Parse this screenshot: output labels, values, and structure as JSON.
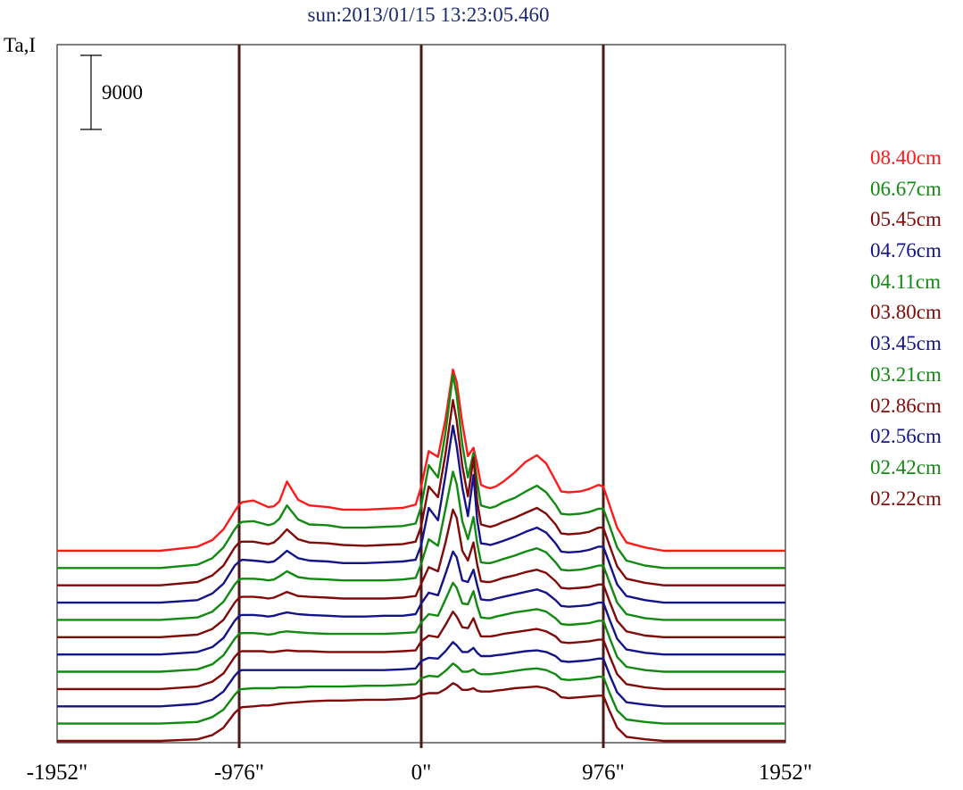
{
  "chart_data": {
    "type": "line",
    "title": "sun:2013/01/15 13:23:05.460",
    "ylabel": "Ta,I",
    "scale_bar_label": "9000",
    "x_ticks": [
      "-1952\"",
      "-976\"",
      "0\"",
      "976\"",
      "1952\""
    ],
    "x_tick_values": [
      -1952,
      -976,
      0,
      976,
      1952
    ],
    "xlim": [
      -1952,
      1952
    ],
    "vertical_lines": [
      -976,
      0,
      976
    ],
    "vertical_line_color": "#4a1a1a",
    "grid": false,
    "legend_position": "right",
    "stack_spacing": 2100,
    "x": [
      -1952,
      -1400,
      -1200,
      -1120,
      -1060,
      -1000,
      -976,
      -960,
      -900,
      -850,
      -820,
      -790,
      -760,
      -720,
      -660,
      -600,
      -500,
      -420,
      -300,
      -200,
      -100,
      -30,
      0,
      40,
      90,
      130,
      170,
      190,
      220,
      250,
      280,
      300,
      320,
      350,
      370,
      400,
      440,
      500,
      560,
      620,
      670,
      720,
      750,
      790,
      850,
      900,
      950,
      976,
      1010,
      1050,
      1100,
      1200,
      1300,
      1500,
      1952
    ],
    "series": [
      {
        "name": "08.40cm",
        "color": "#ff1a1a",
        "values": [
          0,
          0,
          500,
          1300,
          2600,
          4800,
          5600,
          5900,
          6100,
          5600,
          5300,
          5400,
          6000,
          8400,
          6200,
          5500,
          5300,
          5000,
          5000,
          5100,
          5200,
          5600,
          7800,
          12100,
          11400,
          16000,
          22000,
          20500,
          15500,
          11500,
          12500,
          10500,
          8000,
          7700,
          7600,
          7800,
          8400,
          9500,
          10800,
          11600,
          10600,
          8500,
          7200,
          7100,
          7200,
          7500,
          8000,
          7800,
          5500,
          2800,
          1000,
          400,
          0,
          0,
          0
        ]
      },
      {
        "name": "06.67cm",
        "color": "#128a12",
        "values": [
          0,
          0,
          400,
          1200,
          2500,
          4700,
          5400,
          5600,
          5700,
          5400,
          5200,
          5400,
          6000,
          7600,
          5900,
          5300,
          5200,
          4900,
          4900,
          5000,
          5100,
          5400,
          7500,
          12500,
          11000,
          16500,
          23500,
          21000,
          15000,
          11000,
          14000,
          10500,
          7600,
          7400,
          7300,
          7500,
          8000,
          8500,
          9300,
          10000,
          9200,
          7700,
          6600,
          6500,
          6600,
          6800,
          7200,
          7200,
          5100,
          2500,
          900,
          300,
          0,
          0,
          0
        ]
      },
      {
        "name": "05.45cm",
        "color": "#800a0a",
        "values": [
          0,
          0,
          400,
          1200,
          2400,
          4600,
          5200,
          5300,
          5300,
          5100,
          5000,
          5200,
          5800,
          6800,
          5600,
          5200,
          5100,
          4900,
          4800,
          4900,
          5000,
          5300,
          7200,
          12000,
          10700,
          16000,
          22500,
          20000,
          14500,
          10800,
          15500,
          10200,
          7400,
          7200,
          7100,
          7300,
          7700,
          8200,
          8800,
          9400,
          8700,
          7400,
          6300,
          6200,
          6300,
          6500,
          7000,
          7000,
          4800,
          2300,
          800,
          300,
          0,
          0,
          0
        ]
      },
      {
        "name": "04.76cm",
        "color": "#141488",
        "values": [
          0,
          0,
          300,
          1100,
          2300,
          4500,
          5000,
          5200,
          5100,
          5000,
          4900,
          5000,
          5500,
          6300,
          5400,
          5100,
          5000,
          4800,
          4800,
          4900,
          5000,
          5200,
          7000,
          11500,
          10000,
          15500,
          21500,
          19000,
          14000,
          10500,
          15500,
          10000,
          7200,
          7100,
          7000,
          7200,
          7500,
          8000,
          8600,
          9100,
          8500,
          7200,
          6200,
          6100,
          6200,
          6400,
          6800,
          6800,
          4700,
          2200,
          800,
          300,
          0,
          0,
          0
        ]
      },
      {
        "name": "04.11cm",
        "color": "#128a12",
        "values": [
          0,
          0,
          300,
          1000,
          2200,
          4300,
          4900,
          5000,
          5000,
          4900,
          4800,
          4900,
          5300,
          5900,
          5200,
          5000,
          4900,
          4800,
          4800,
          4800,
          4900,
          5100,
          6800,
          9800,
          9000,
          13500,
          18000,
          16500,
          12000,
          9800,
          12500,
          9300,
          7000,
          6900,
          6900,
          7100,
          7400,
          7800,
          8300,
          8700,
          8200,
          7000,
          6100,
          6000,
          6100,
          6300,
          6600,
          6600,
          4500,
          2100,
          700,
          200,
          0,
          0,
          0
        ]
      },
      {
        "name": "03.80cm",
        "color": "#800a0a",
        "values": [
          0,
          0,
          300,
          1000,
          2100,
          4200,
          4800,
          4900,
          4900,
          4800,
          4700,
          4800,
          5100,
          5500,
          5000,
          4900,
          4800,
          4700,
          4700,
          4700,
          4800,
          5000,
          6500,
          8500,
          8000,
          11500,
          15500,
          14500,
          10500,
          9300,
          11500,
          8800,
          6800,
          6700,
          6700,
          6900,
          7200,
          7500,
          7900,
          8200,
          7800,
          6800,
          6000,
          5900,
          6000,
          6100,
          6400,
          6400,
          4300,
          2000,
          700,
          200,
          0,
          0,
          0
        ]
      },
      {
        "name": "03.45cm",
        "color": "#141488",
        "values": [
          0,
          0,
          300,
          900,
          2000,
          4100,
          4700,
          4800,
          4800,
          4700,
          4600,
          4700,
          4900,
          5100,
          4900,
          4800,
          4700,
          4600,
          4600,
          4700,
          4700,
          4900,
          6200,
          7500,
          7200,
          9800,
          12500,
          11800,
          9000,
          8800,
          10300,
          8400,
          6700,
          6600,
          6600,
          6800,
          7000,
          7300,
          7600,
          7900,
          7500,
          6600,
          5900,
          5800,
          5900,
          6000,
          6300,
          6300,
          4200,
          1900,
          600,
          200,
          0,
          0,
          0
        ]
      },
      {
        "name": "03.21cm",
        "color": "#128a12",
        "values": [
          0,
          0,
          300,
          900,
          2000,
          4000,
          4600,
          4700,
          4700,
          4600,
          4500,
          4600,
          4800,
          4900,
          4800,
          4700,
          4600,
          4600,
          4600,
          4600,
          4700,
          4800,
          6000,
          7000,
          6800,
          8800,
          10800,
          10200,
          8300,
          8200,
          9800,
          8000,
          6600,
          6500,
          6500,
          6700,
          6900,
          7200,
          7400,
          7600,
          7300,
          6500,
          5800,
          5700,
          5800,
          5900,
          6200,
          6200,
          4100,
          1800,
          600,
          200,
          0,
          0,
          0
        ]
      },
      {
        "name": "02.86cm",
        "color": "#800a0a",
        "values": [
          0,
          0,
          300,
          900,
          1900,
          3900,
          4500,
          4600,
          4600,
          4600,
          4500,
          4500,
          4600,
          4700,
          4600,
          4600,
          4500,
          4500,
          4500,
          4500,
          4600,
          4700,
          5800,
          6500,
          6300,
          7800,
          9400,
          8800,
          7500,
          7400,
          8600,
          7400,
          6400,
          6400,
          6400,
          6500,
          6700,
          6900,
          7100,
          7300,
          7000,
          6400,
          5700,
          5600,
          5700,
          5800,
          6000,
          6000,
          4000,
          1800,
          600,
          200,
          0,
          0,
          0
        ]
      },
      {
        "name": "02.56cm",
        "color": "#141488",
        "values": [
          0,
          0,
          300,
          800,
          1800,
          3700,
          4300,
          4400,
          4400,
          4400,
          4400,
          4400,
          4400,
          4400,
          4400,
          4400,
          4400,
          4400,
          4400,
          4400,
          4500,
          4600,
          5500,
          5900,
          5800,
          6700,
          7800,
          7400,
          6600,
          6600,
          7100,
          6500,
          6100,
          6100,
          6100,
          6200,
          6300,
          6500,
          6700,
          6800,
          6600,
          6100,
          5500,
          5400,
          5500,
          5600,
          5800,
          5800,
          3800,
          1700,
          500,
          200,
          0,
          0,
          0
        ]
      },
      {
        "name": "02.42cm",
        "color": "#128a12",
        "values": [
          0,
          0,
          200,
          800,
          1700,
          3500,
          4100,
          4200,
          4300,
          4300,
          4300,
          4300,
          4400,
          4400,
          4400,
          4500,
          4500,
          4500,
          4600,
          4600,
          4700,
          4800,
          5500,
          5800,
          5700,
          6400,
          7300,
          7000,
          6300,
          6300,
          6600,
          6200,
          6000,
          6000,
          6000,
          6100,
          6200,
          6400,
          6600,
          6700,
          6500,
          6000,
          5400,
          5300,
          5400,
          5500,
          5700,
          5700,
          3700,
          1600,
          500,
          200,
          0,
          0,
          0
        ]
      },
      {
        "name": "02.22cm",
        "color": "#800a0a",
        "values": [
          0,
          0,
          200,
          700,
          1600,
          3400,
          3900,
          4100,
          4200,
          4300,
          4300,
          4400,
          4500,
          4600,
          4700,
          4800,
          4900,
          4900,
          5000,
          5000,
          5100,
          5200,
          5600,
          5800,
          5800,
          6300,
          7000,
          6800,
          6200,
          6200,
          6400,
          6100,
          6000,
          6000,
          6000,
          6100,
          6200,
          6400,
          6500,
          6600,
          6400,
          5900,
          5300,
          5200,
          5300,
          5400,
          5500,
          5500,
          3600,
          1600,
          500,
          200,
          0,
          0,
          0
        ]
      }
    ]
  }
}
